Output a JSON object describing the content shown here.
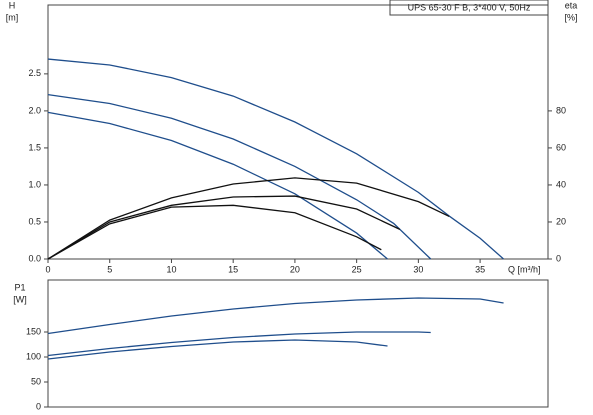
{
  "chart_data": [
    {
      "type": "line",
      "title": "UPS 65-30 F B, 3*400 V, 50Hz",
      "ylabel": "H",
      "yunit": "[m]",
      "y2label": "eta",
      "y2unit": "[%]",
      "xlabel": "Q [m³/h]",
      "xlim": [
        0,
        40.5
      ],
      "xticks": [
        0,
        5,
        10,
        15,
        20,
        25,
        30,
        35
      ],
      "ylim": [
        0,
        3.43
      ],
      "yticks": [
        {
          "value": 0,
          "label": "0.0"
        },
        0.5,
        {
          "value": 1,
          "label": "1.0"
        },
        1.5,
        {
          "value": 2,
          "label": "2.0"
        },
        2.5
      ],
      "y2lim": [
        0,
        137.2
      ],
      "y2ticks": [
        0,
        20,
        40,
        60,
        80
      ],
      "grid": false,
      "series": [
        {
          "color": "#1f4e8c",
          "x": [
            0,
            5,
            10,
            15,
            20,
            25,
            30,
            32.5,
            35,
            36.9
          ],
          "values": [
            2.7,
            2.62,
            2.45,
            2.2,
            1.85,
            1.42,
            0.9,
            0.58,
            0.28,
            0
          ]
        },
        {
          "color": "#1f4e8c",
          "x": [
            0,
            5,
            10,
            15,
            20,
            25,
            28,
            31
          ],
          "values": [
            2.22,
            2.1,
            1.9,
            1.62,
            1.25,
            0.8,
            0.48,
            0
          ]
        },
        {
          "color": "#1f4e8c",
          "x": [
            0,
            5,
            10,
            15,
            20,
            25,
            27.5
          ],
          "values": [
            1.98,
            1.83,
            1.6,
            1.28,
            0.88,
            0.35,
            0
          ]
        },
        {
          "color": "#111111",
          "axis": "y2",
          "x": [
            0,
            5,
            10,
            15,
            20,
            25,
            30,
            32.5
          ],
          "values": [
            0,
            21,
            33,
            40.5,
            43.8,
            41,
            31,
            23
          ]
        },
        {
          "color": "#111111",
          "axis": "y2",
          "x": [
            0,
            5,
            10,
            15,
            20,
            25,
            28.5
          ],
          "values": [
            0,
            20,
            29,
            33.5,
            34,
            27,
            16
          ]
        },
        {
          "color": "#111111",
          "axis": "y2",
          "x": [
            0,
            5,
            10,
            15,
            20,
            25,
            27
          ],
          "values": [
            0,
            19,
            28,
            29,
            25,
            12,
            5
          ]
        }
      ]
    },
    {
      "type": "line",
      "ylabel": "P1",
      "yunit": "[W]",
      "xlim": [
        0,
        40.5
      ],
      "ylim": [
        0,
        254
      ],
      "yticks": [
        0,
        50,
        100,
        150
      ],
      "grid": false,
      "series": [
        {
          "color": "#1f4e8c",
          "x": [
            0,
            5,
            10,
            15,
            20,
            25,
            30,
            35,
            36.9
          ],
          "values": [
            147,
            165,
            182,
            196,
            207,
            214,
            218,
            216,
            208
          ]
        },
        {
          "color": "#1f4e8c",
          "x": [
            0,
            5,
            10,
            15,
            20,
            25,
            30,
            31
          ],
          "values": [
            103,
            117,
            129,
            139,
            146,
            150,
            150,
            149
          ]
        },
        {
          "color": "#1f4e8c",
          "x": [
            0,
            5,
            10,
            15,
            20,
            25,
            27.5
          ],
          "values": [
            96,
            110,
            121,
            130,
            134,
            130,
            122
          ]
        }
      ]
    }
  ]
}
